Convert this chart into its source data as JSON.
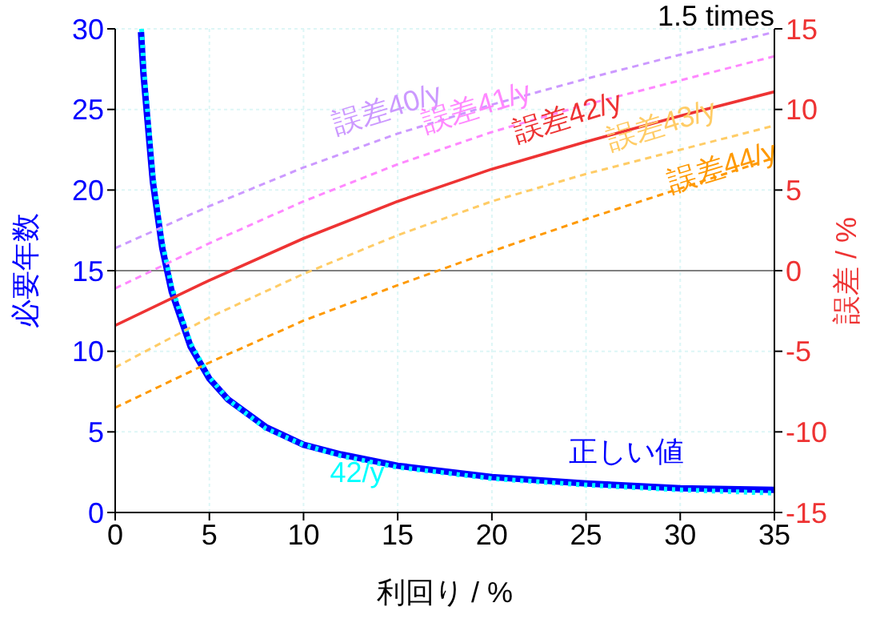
{
  "chart_data": {
    "type": "line",
    "title": "1.5 times",
    "xlabel": "利回り / %",
    "ylabel": "必要年数",
    "y2label": "誤差 / %",
    "xlim": [
      0,
      35
    ],
    "xticks": [
      0,
      5,
      10,
      15,
      20,
      25,
      30,
      35
    ],
    "ylim": [
      0,
      30
    ],
    "yticks": [
      0,
      5,
      10,
      15,
      20,
      25,
      30
    ],
    "y2lim": [
      -15,
      15
    ],
    "y2ticks": [
      -15,
      -10,
      -5,
      0,
      5,
      10,
      15
    ],
    "grid": true,
    "marker": "none",
    "ref_lines": [
      {
        "axis": "y2",
        "value": 0,
        "color": "#808080"
      }
    ],
    "series": [
      {
        "name": "正しい値",
        "color": "#0000ff",
        "line_style": "solid",
        "x": [
          1.37,
          1.5,
          2,
          2.5,
          3,
          4,
          5,
          6,
          8,
          10,
          12,
          15,
          20,
          25,
          30,
          35
        ],
        "values": [
          29.8,
          27.2,
          20.5,
          16.4,
          13.7,
          10.3,
          8.3,
          7.0,
          5.3,
          4.2,
          3.6,
          2.9,
          2.2,
          1.8,
          1.5,
          1.4
        ]
      },
      {
        "name": "42/y",
        "color": "#00ffff",
        "line_style": "dotted",
        "x": [
          1.4,
          1.5,
          2,
          2.5,
          3,
          4,
          5,
          6,
          8,
          10,
          12,
          15,
          20,
          25,
          30,
          35
        ],
        "values": [
          30,
          28,
          21,
          16.8,
          14,
          10.5,
          8.4,
          7,
          5.2,
          4.2,
          3.5,
          2.8,
          2.1,
          1.7,
          1.4,
          1.2
        ]
      },
      {
        "name": "誤差40/y",
        "color": "#cc99ff",
        "line_style": "dashed",
        "axis": "y2",
        "x": [
          0,
          5,
          10,
          15,
          20,
          25,
          30,
          35
        ],
        "values": [
          1.4,
          4.0,
          6.4,
          8.5,
          10.3,
          11.9,
          13.4,
          14.8
        ]
      },
      {
        "name": "誤差41/y",
        "color": "#ff88ff",
        "line_style": "dashed",
        "axis": "y2",
        "x": [
          0,
          5,
          10,
          15,
          20,
          25,
          30,
          35
        ],
        "values": [
          -1.1,
          1.7,
          4.3,
          6.6,
          8.6,
          10.3,
          11.8,
          13.3
        ]
      },
      {
        "name": "誤差42/y",
        "color": "#ee3333",
        "line_style": "solid",
        "axis": "y2",
        "x": [
          0,
          5,
          10,
          15,
          20,
          25,
          30,
          35
        ],
        "values": [
          -3.4,
          -0.6,
          2.0,
          4.3,
          6.3,
          8.0,
          9.6,
          11.1
        ]
      },
      {
        "name": "誤差43/y",
        "color": "#ffcc66",
        "line_style": "dashed",
        "axis": "y2",
        "x": [
          0,
          5,
          10,
          15,
          20,
          25,
          30,
          35
        ],
        "values": [
          -6.0,
          -2.9,
          -0.2,
          2.2,
          4.3,
          6.0,
          7.5,
          9.0
        ]
      },
      {
        "name": "誤差44/y",
        "color": "#ff9900",
        "line_style": "dashed",
        "axis": "y2",
        "x": [
          0,
          5,
          10,
          15,
          20,
          25,
          30,
          35
        ],
        "values": [
          -8.5,
          -5.7,
          -3.1,
          -0.9,
          1.2,
          3.2,
          5.1,
          7.0
        ]
      }
    ]
  }
}
